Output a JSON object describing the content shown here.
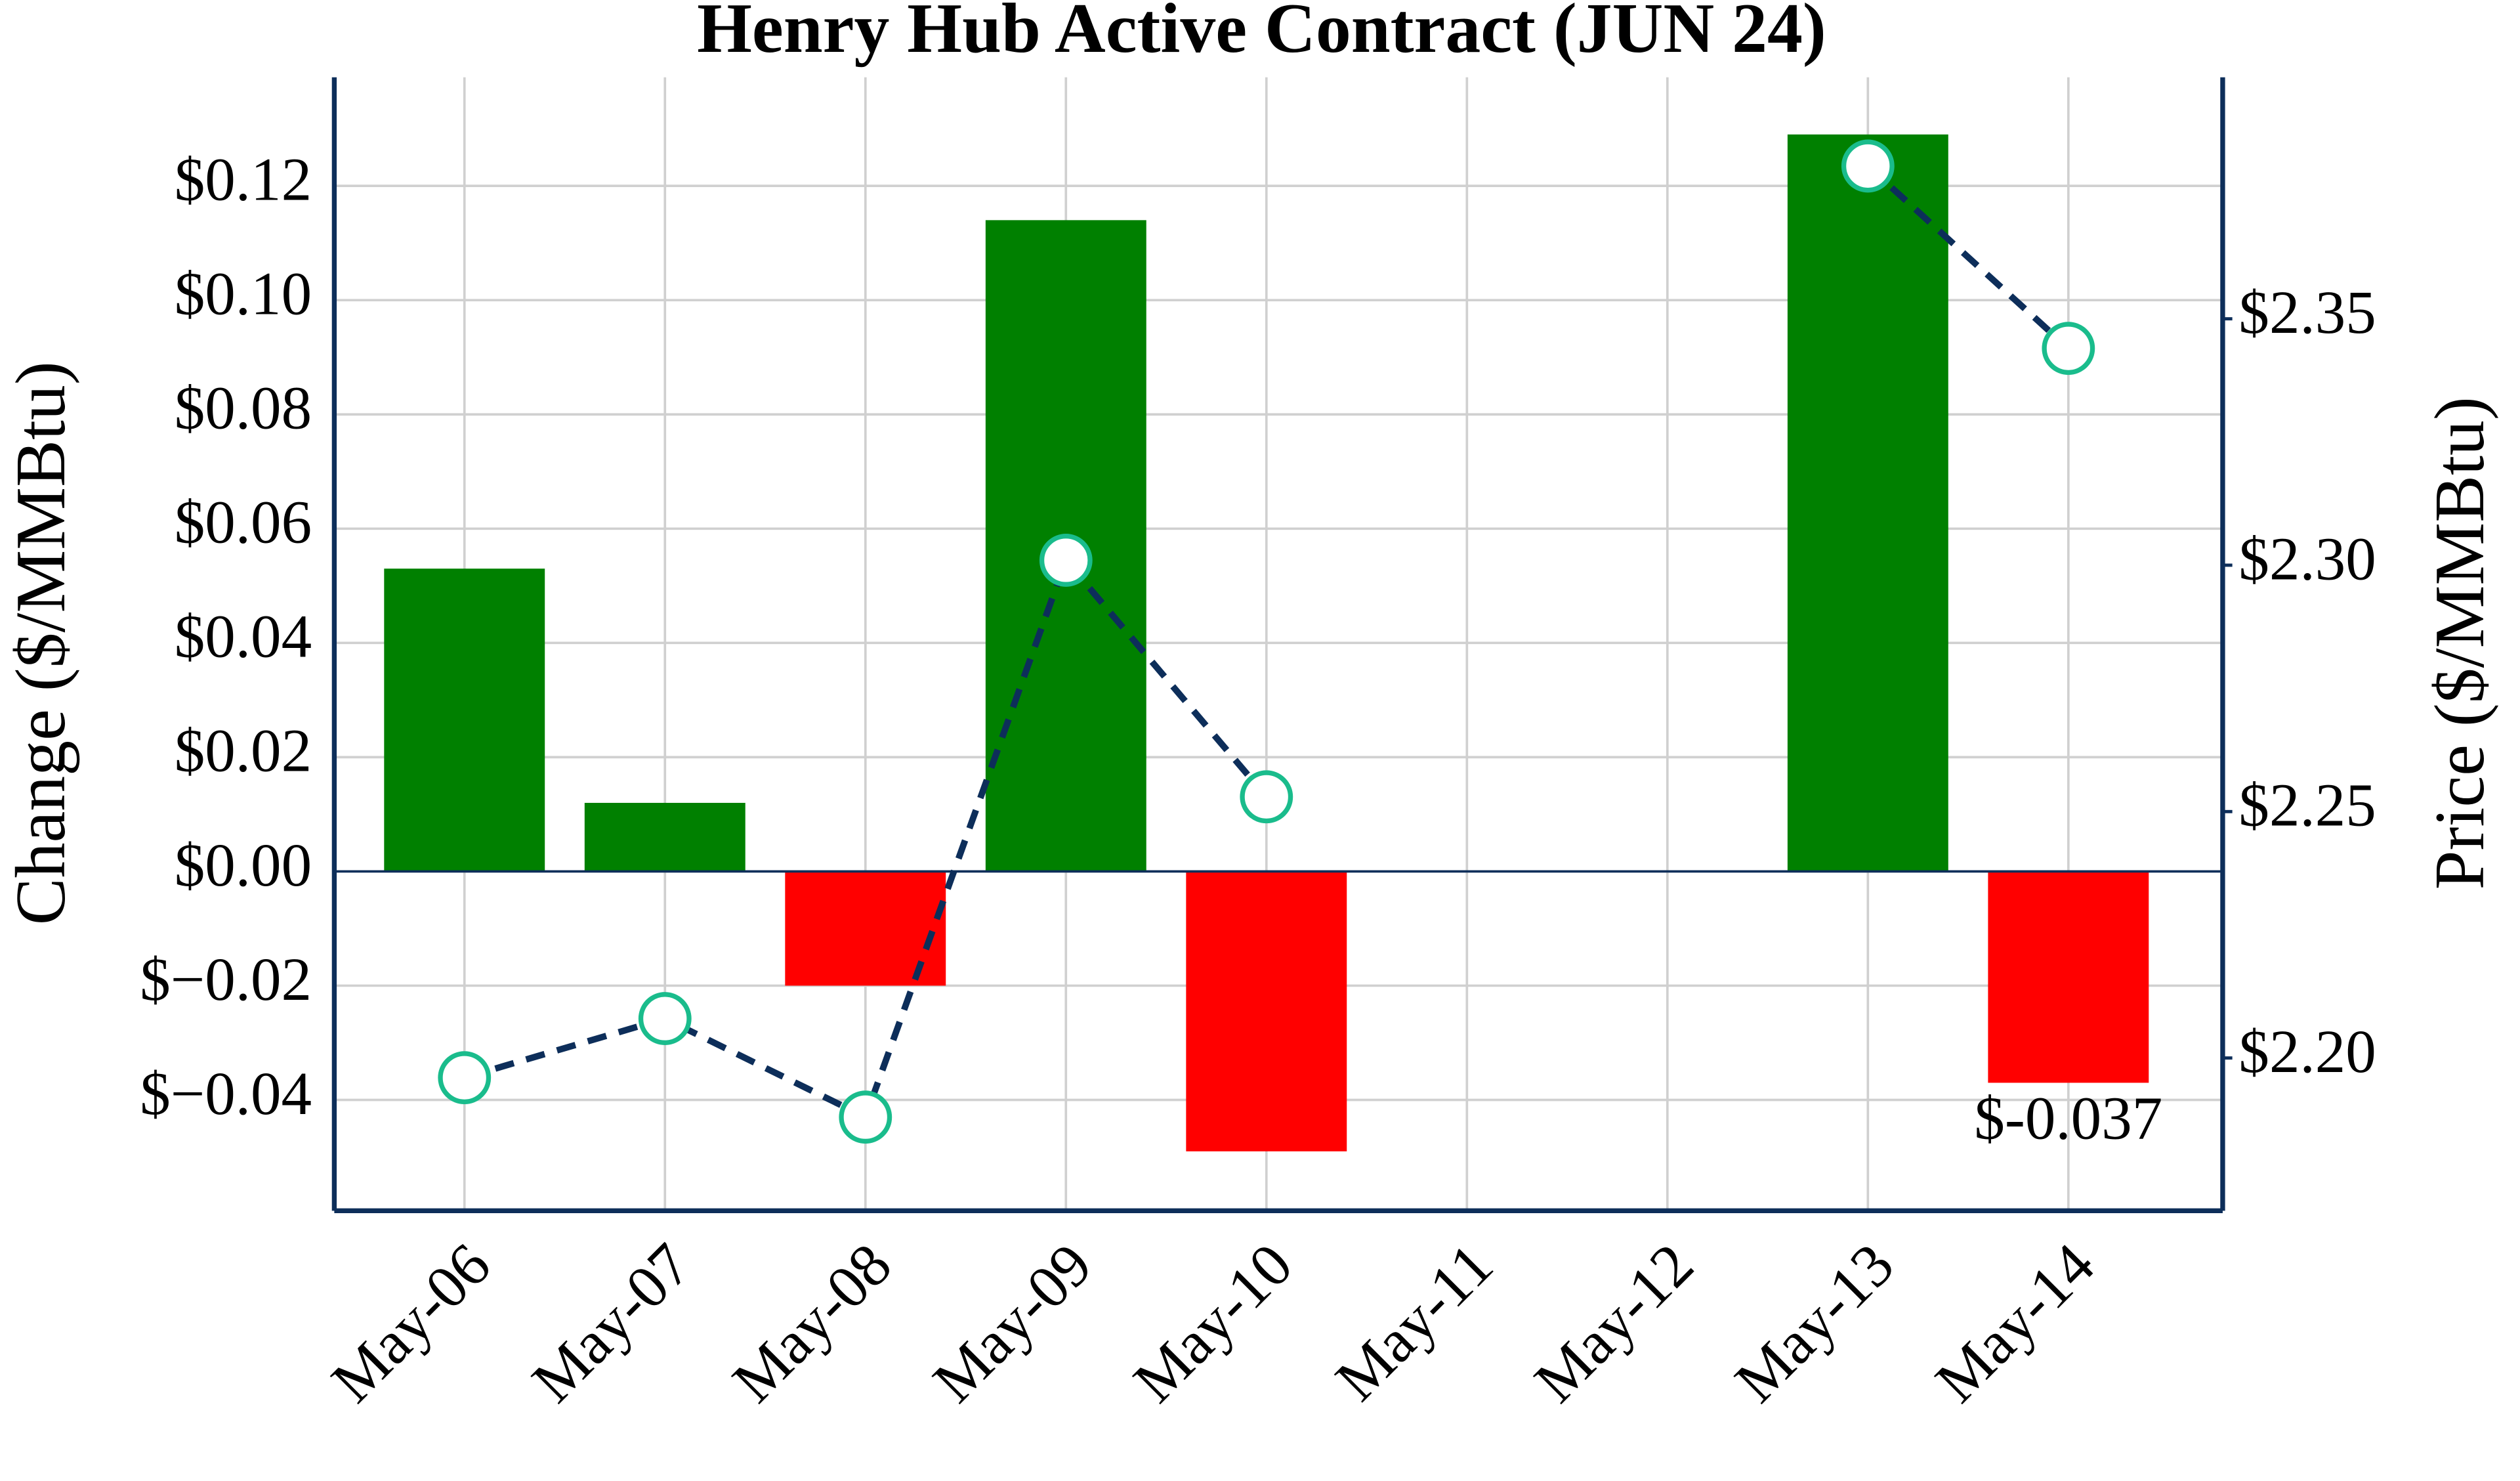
{
  "chart_data": {
    "type": "bar_line",
    "title": "Henry Hub Active Contract (JUN 24)",
    "y_label": "Change ($/MMBtu)",
    "y2_label": "Price ($/MMBtu)",
    "categories": [
      "May-06",
      "May-07",
      "May-08",
      "May-09",
      "May-10",
      "May-11",
      "May-12",
      "May-13",
      "May-14"
    ],
    "series": [
      {
        "type": "bar",
        "values": [
          0.053,
          0.012,
          -0.02,
          0.114,
          -0.049,
          null,
          null,
          0.129,
          -0.037
        ],
        "value_labels": [
          null,
          null,
          null,
          null,
          null,
          null,
          null,
          null,
          "$-0.037"
        ],
        "positive_color": "#008000",
        "negative_color": "#ff0000"
      },
      {
        "type": "line",
        "axis": "y2",
        "values": [
          2.196,
          2.208,
          2.188,
          2.301,
          2.253,
          null,
          null,
          2.381,
          2.344
        ],
        "color": "#0d2e5a",
        "marker_edge_color": "#1abc8c"
      }
    ],
    "ylim": [
      -0.0594,
      0.139
    ],
    "yticks": [
      {
        "value": -0.04,
        "label": "$−0.04"
      },
      {
        "value": -0.02,
        "label": "$−0.02"
      },
      {
        "value": 0,
        "label": "$0.00"
      },
      {
        "value": 0.02,
        "label": "$0.02"
      },
      {
        "value": 0.04,
        "label": "$0.04"
      },
      {
        "value": 0.06,
        "label": "$0.06"
      },
      {
        "value": 0.08,
        "label": "$0.08"
      },
      {
        "value": 0.1,
        "label": "$0.10"
      },
      {
        "value": 0.12,
        "label": "$0.12"
      }
    ],
    "y2lim": [
      2.169,
      2.399
    ],
    "y2ticks": [
      {
        "value": 2.2,
        "label": "$2.20"
      },
      {
        "value": 2.25,
        "label": "$2.25"
      },
      {
        "value": 2.3,
        "label": "$2.30"
      },
      {
        "value": 2.35,
        "label": "$2.35"
      }
    ],
    "grid": true
  }
}
